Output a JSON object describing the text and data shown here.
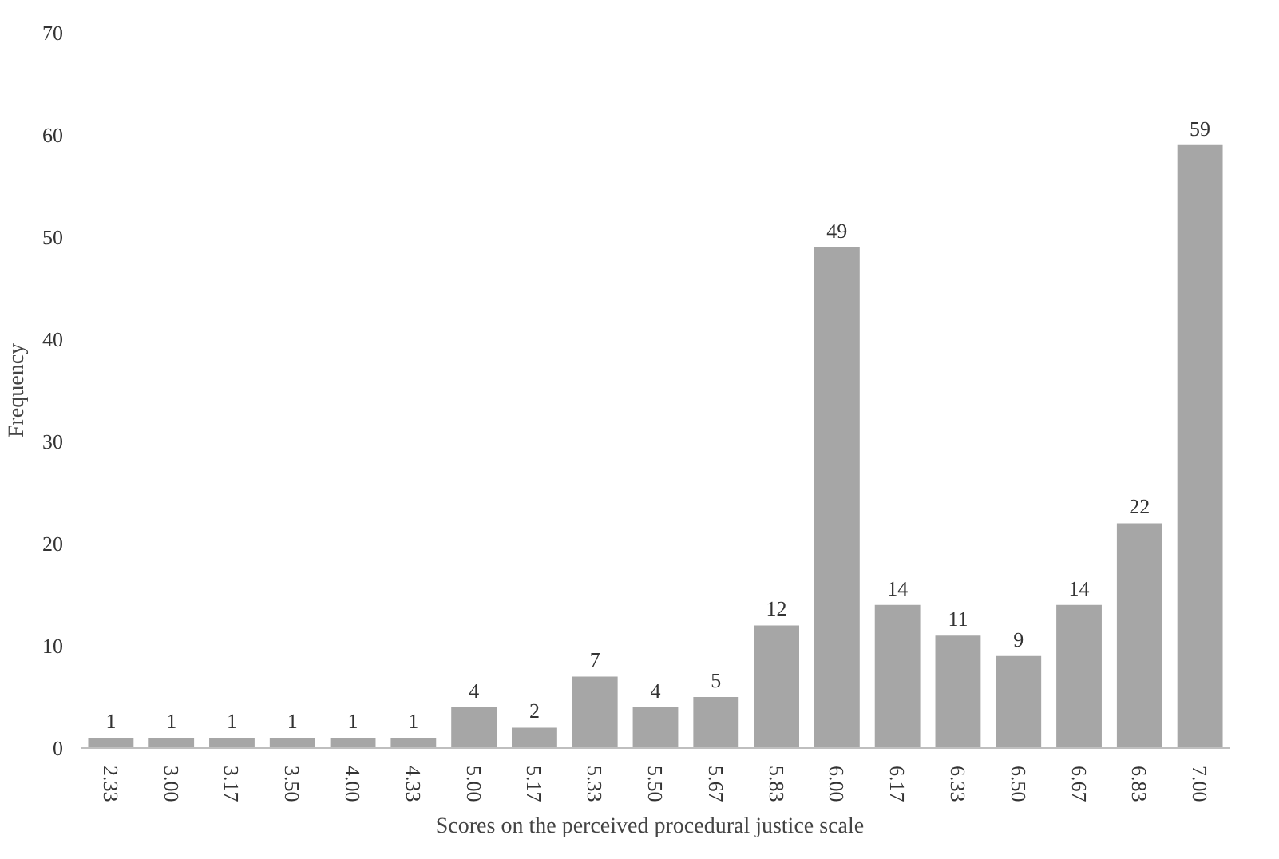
{
  "chart_data": {
    "type": "bar",
    "xlabel": "Scores on the perceived  procedural  justice scale",
    "ylabel": "Frequency",
    "categories": [
      "2.33",
      "3.00",
      "3.17",
      "3.50",
      "4.00",
      "4.33",
      "5.00",
      "5.17",
      "5.33",
      "5.50",
      "5.67",
      "5.83",
      "6.00",
      "6.17",
      "6.33",
      "6.50",
      "6.67",
      "6.83",
      "7.00"
    ],
    "values": [
      1,
      1,
      1,
      1,
      1,
      1,
      4,
      2,
      7,
      4,
      5,
      12,
      49,
      14,
      11,
      9,
      14,
      22,
      59
    ],
    "color": "#a6a6a6",
    "ylim": [
      0,
      70
    ],
    "yticks": [
      0,
      10,
      20,
      30,
      40,
      50,
      60,
      70
    ],
    "data_labels": true,
    "grid": false
  }
}
